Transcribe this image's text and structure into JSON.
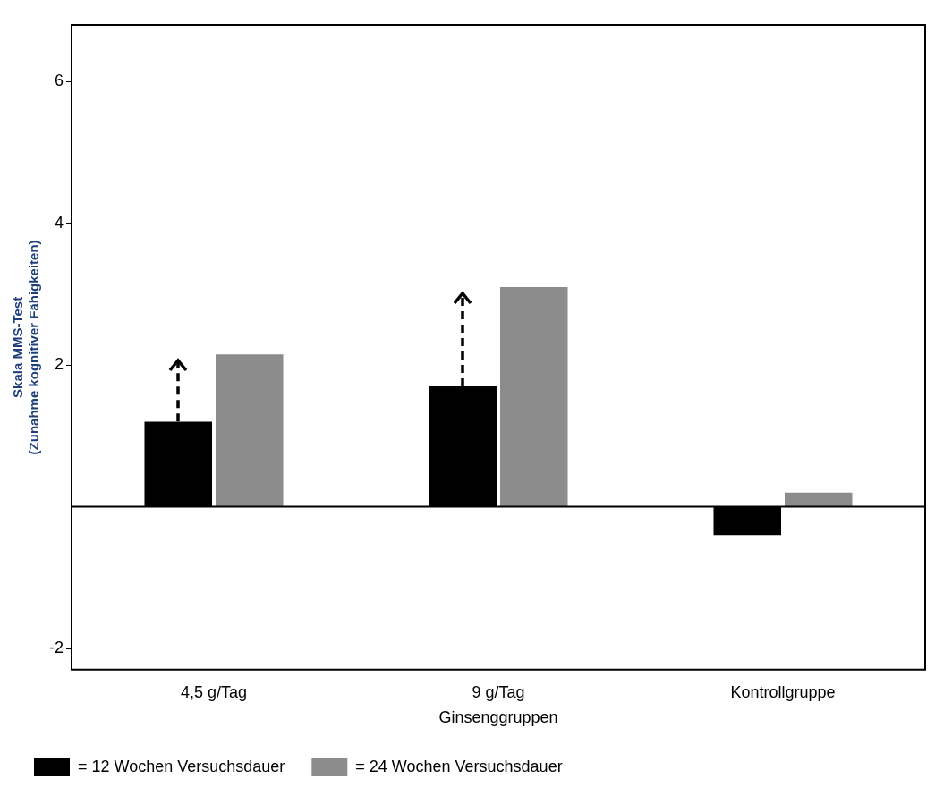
{
  "chart_data": {
    "type": "bar",
    "xlabel": "Ginsenggruppen",
    "ylabel": "Skala MMS-Test\n(Zunahme kognitiver Fähigkeiten)",
    "categories": [
      "4,5 g/Tag",
      "9 g/Tag",
      "Kontrollgruppe"
    ],
    "series": [
      {
        "name": "= 12 Wochen Versuchsdauer",
        "color": "#000000",
        "values": [
          1.2,
          1.7,
          -0.4
        ]
      },
      {
        "name": "= 24 Wochen Versuchsdauer",
        "color": "#8c8c8c",
        "values": [
          2.15,
          3.1,
          0.2
        ]
      }
    ],
    "ylim": [
      -2.3,
      6.8
    ],
    "yticks": [
      -2,
      2,
      4,
      6
    ],
    "grid": false,
    "legend": "bottom left"
  }
}
